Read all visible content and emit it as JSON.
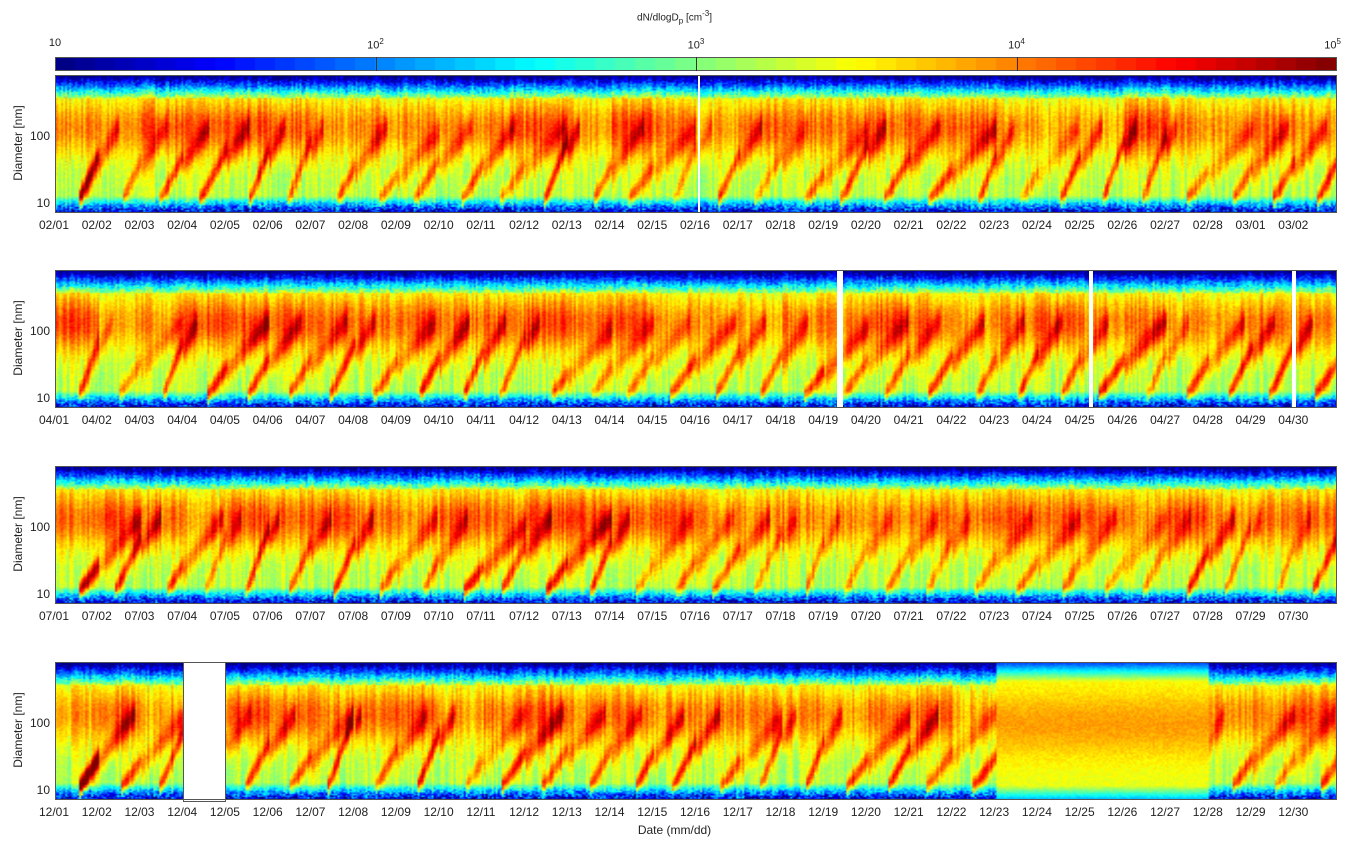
{
  "chart_data": {
    "type": "heatmap",
    "colorbar": {
      "label_main": "dN/dlogD",
      "label_sub": "p",
      "label_unit": " [cm",
      "label_unit_exp": "-3",
      "label_close": "]",
      "scale": "log",
      "range": [
        10,
        100000
      ],
      "ticks": [
        {
          "base": "10",
          "exp": "",
          "value": 10
        },
        {
          "base": "10",
          "exp": "2",
          "value": 100
        },
        {
          "base": "10",
          "exp": "3",
          "value": 1000
        },
        {
          "base": "10",
          "exp": "4",
          "value": 10000
        },
        {
          "base": "10",
          "exp": "5",
          "value": 100000
        }
      ],
      "colormap": "jet"
    },
    "xlabel": "Date (mm/dd)",
    "panels": [
      {
        "ylabel": "Diameter [nm]",
        "yscale": "log",
        "yticks": [
          "10",
          "100"
        ],
        "yrange_nm": [
          7,
          800
        ],
        "month": "02",
        "days": 30,
        "xticks": [
          "02/01",
          "02/02",
          "02/03",
          "02/04",
          "02/05",
          "02/06",
          "02/07",
          "02/08",
          "02/09",
          "02/10",
          "02/11",
          "02/12",
          "02/13",
          "02/14",
          "02/15",
          "02/16",
          "02/17",
          "02/18",
          "02/19",
          "02/20",
          "02/21",
          "02/22",
          "02/23",
          "02/24",
          "02/25",
          "02/26",
          "02/27",
          "02/28",
          "03/01",
          "03/02"
        ],
        "gaps_days": [
          [
            15.05,
            15.1
          ]
        ]
      },
      {
        "ylabel": "Diameter [nm]",
        "yscale": "log",
        "yticks": [
          "10",
          "100"
        ],
        "yrange_nm": [
          7,
          800
        ],
        "month": "04",
        "days": 30,
        "xticks": [
          "04/01",
          "04/02",
          "04/03",
          "04/04",
          "04/05",
          "04/06",
          "04/07",
          "04/08",
          "04/09",
          "04/10",
          "04/11",
          "04/12",
          "04/13",
          "04/14",
          "04/15",
          "04/16",
          "04/17",
          "04/18",
          "04/19",
          "04/20",
          "04/21",
          "04/22",
          "04/23",
          "04/24",
          "04/25",
          "04/26",
          "04/27",
          "04/28",
          "04/29",
          "04/30"
        ],
        "gaps_days": [
          [
            18.3,
            18.45
          ],
          [
            24.2,
            24.3
          ],
          [
            28.95,
            29.05
          ]
        ]
      },
      {
        "ylabel": "Diameter [nm]",
        "yscale": "log",
        "yticks": [
          "10",
          "100"
        ],
        "yrange_nm": [
          7,
          800
        ],
        "month": "07",
        "days": 30,
        "xticks": [
          "07/01",
          "07/02",
          "07/03",
          "07/04",
          "07/05",
          "07/06",
          "07/07",
          "07/08",
          "07/09",
          "07/10",
          "07/11",
          "07/12",
          "07/13",
          "07/14",
          "07/15",
          "07/16",
          "07/17",
          "07/18",
          "07/19",
          "07/20",
          "07/21",
          "07/22",
          "07/23",
          "07/24",
          "07/25",
          "07/26",
          "07/27",
          "07/28",
          "07/29",
          "07/30"
        ],
        "gaps_days": []
      },
      {
        "ylabel": "Diameter [nm]",
        "yscale": "log",
        "yticks": [
          "10",
          "100"
        ],
        "yrange_nm": [
          7,
          800
        ],
        "month": "12",
        "days": 30,
        "xticks": [
          "12/01",
          "12/02",
          "12/03",
          "12/04",
          "12/05",
          "12/06",
          "12/07",
          "12/08",
          "12/09",
          "12/10",
          "12/11",
          "12/12",
          "12/13",
          "12/14",
          "12/15",
          "12/16",
          "12/17",
          "12/18",
          "12/19",
          "12/20",
          "12/21",
          "12/22",
          "12/23",
          "12/24",
          "12/25",
          "12/26",
          "12/27",
          "12/28",
          "12/29",
          "12/30"
        ],
        "gaps_days": [
          [
            3.0,
            3.95
          ]
        ]
      }
    ]
  }
}
